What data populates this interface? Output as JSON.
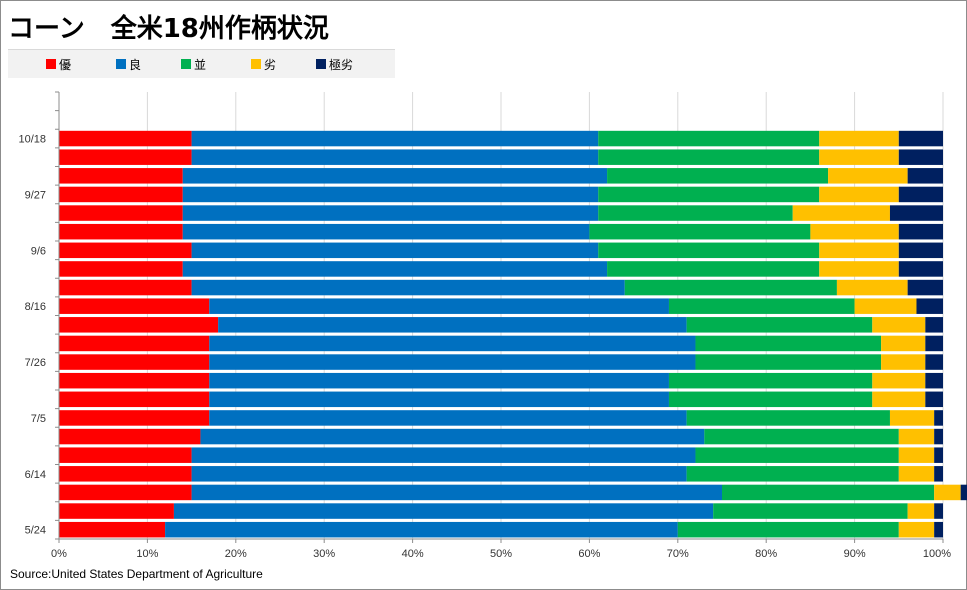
{
  "title": "コーン　全米18州作柄状況",
  "source": "Source:United States Department of Agriculture",
  "colors": {
    "優": "#ff0000",
    "良": "#0070c0",
    "並": "#00b050",
    "劣": "#ffc000",
    "極劣": "#002060"
  },
  "chart_data": {
    "type": "bar",
    "orientation": "horizontal",
    "stacked": true,
    "title": "コーン　全米18州作柄状況",
    "legend_position": "top-left",
    "categories": [
      "5/24",
      "5/31",
      "6/7",
      "6/14",
      "6/21",
      "6/28",
      "7/5",
      "7/12",
      "7/19",
      "7/26",
      "8/2",
      "8/9",
      "8/16",
      "8/23",
      "8/30",
      "9/6",
      "9/13",
      "9/20",
      "9/27",
      "10/4",
      "10/11",
      "10/18"
    ],
    "category_labels": [
      "5/24",
      "",
      "",
      "6/14",
      "",
      "",
      "7/5",
      "",
      "",
      "7/26",
      "",
      "",
      "8/16",
      "",
      "",
      "9/6",
      "",
      "",
      "9/27",
      "",
      "",
      "10/18"
    ],
    "series": [
      {
        "name": "優",
        "values": [
          12,
          13,
          15,
          15,
          15,
          16,
          17,
          17,
          17,
          17,
          17,
          18,
          17,
          15,
          14,
          15,
          14,
          14,
          14,
          14,
          15,
          15
        ]
      },
      {
        "name": "良",
        "values": [
          58,
          61,
          60,
          56,
          57,
          57,
          54,
          52,
          52,
          55,
          55,
          53,
          52,
          49,
          48,
          46,
          46,
          47,
          47,
          48,
          46,
          46
        ]
      },
      {
        "name": "並",
        "values": [
          25,
          22,
          24,
          24,
          23,
          22,
          23,
          23,
          23,
          21,
          21,
          21,
          21,
          24,
          24,
          25,
          25,
          22,
          25,
          25,
          25,
          25
        ]
      },
      {
        "name": "劣",
        "values": [
          4,
          3,
          3,
          4,
          4,
          4,
          5,
          6,
          6,
          5,
          5,
          6,
          7,
          8,
          9,
          9,
          10,
          11,
          9,
          9,
          9,
          9
        ]
      },
      {
        "name": "極劣",
        "values": [
          1,
          1,
          1,
          1,
          1,
          1,
          1,
          2,
          2,
          2,
          2,
          2,
          3,
          4,
          5,
          5,
          5,
          6,
          5,
          4,
          5,
          5
        ]
      }
    ],
    "xlim": [
      0,
      100
    ],
    "xticks": [
      "0%",
      "10%",
      "20%",
      "30%",
      "40%",
      "50%",
      "60%",
      "70%",
      "80%",
      "90%",
      "100%"
    ],
    "grid": true
  }
}
